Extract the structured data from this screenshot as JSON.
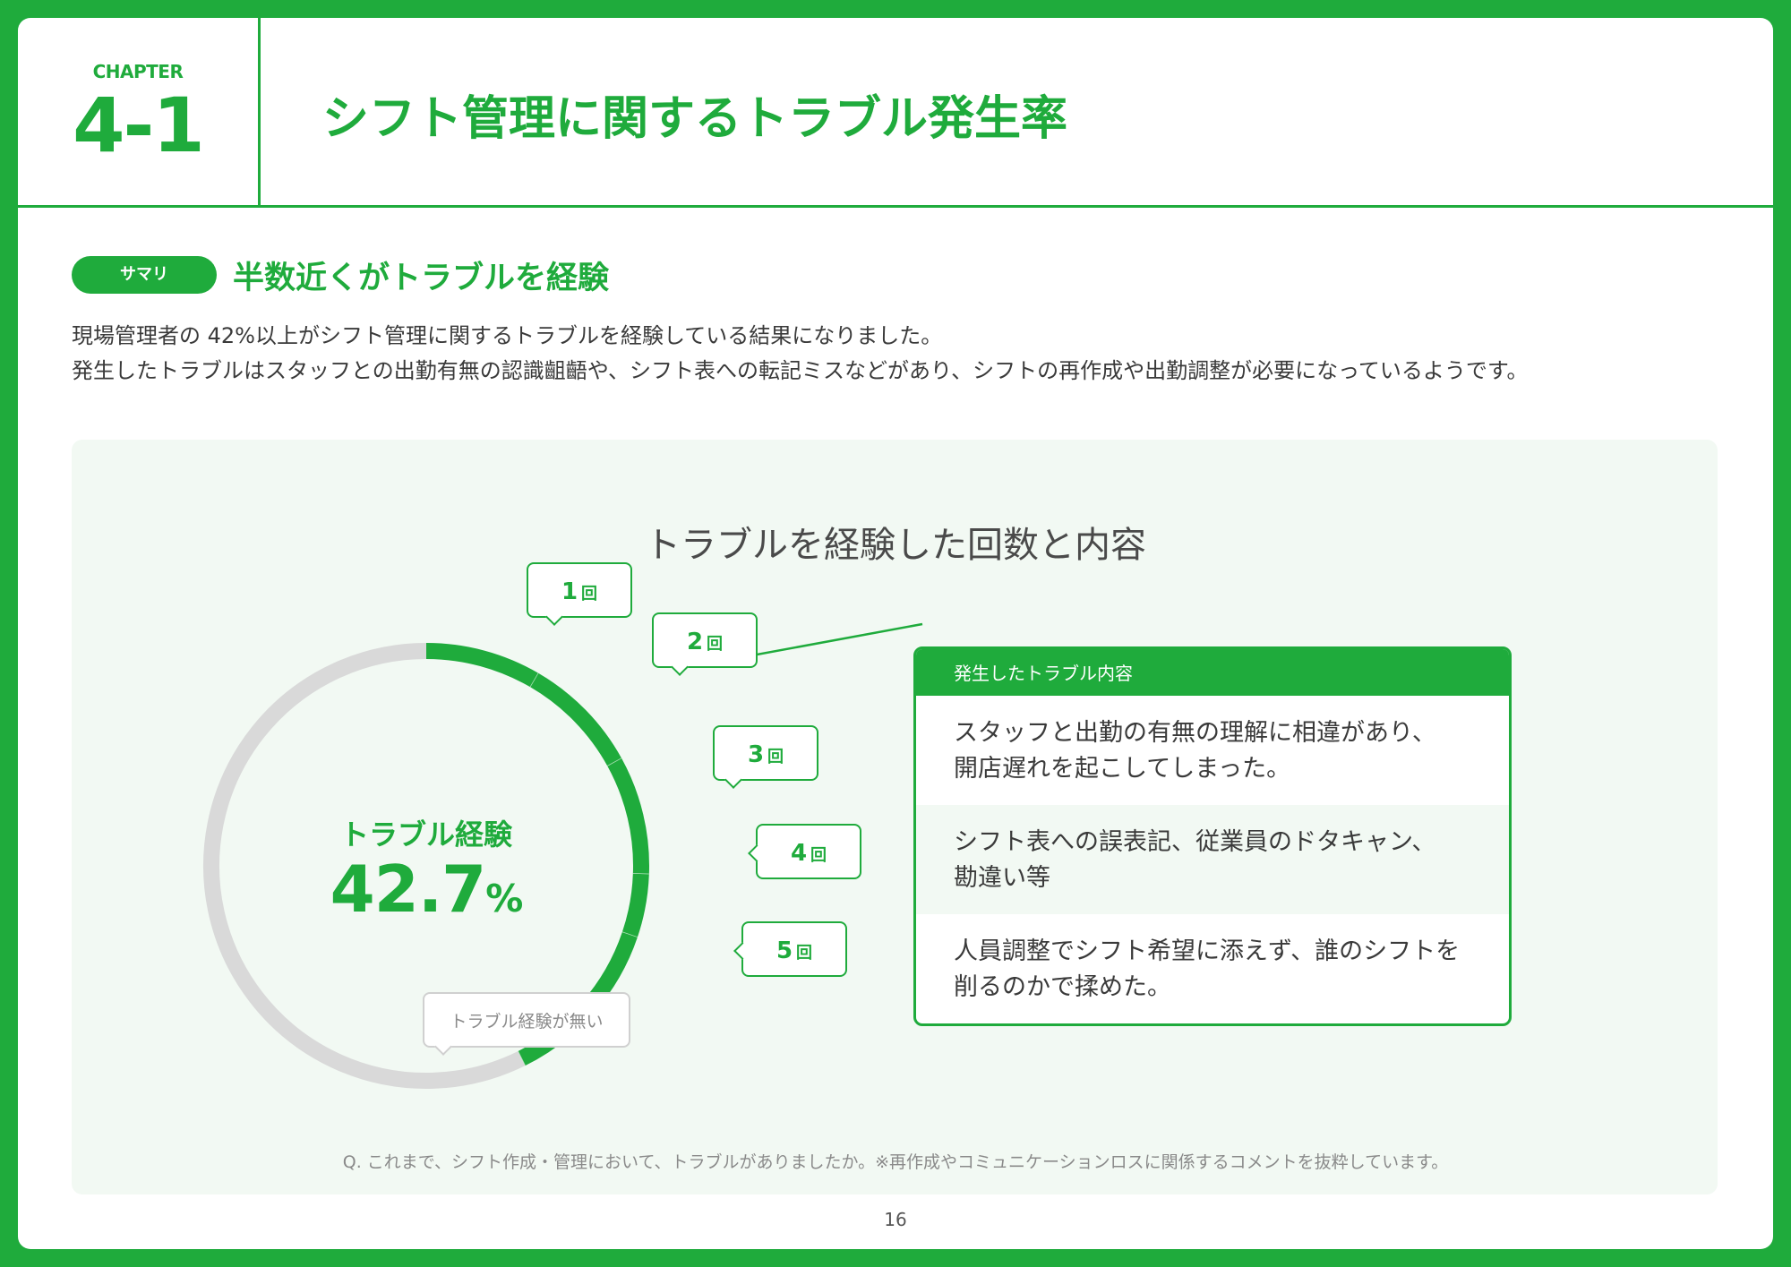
{
  "header": {
    "chapter_label": "CHAPTER",
    "chapter_number": "4-1",
    "title": "シフト管理に関するトラブル発生率"
  },
  "summary": {
    "badge": "サマリ",
    "heading": "半数近くがトラブルを経験",
    "body_line1": "現場管理者の 42%以上がシフト管理に関するトラブルを経験している結果になりました。",
    "body_line2": "発生したトラブルはスタッフとの出勤有無の認識齟齬や、シフト表への転記ミスなどがあり、シフトの再作成や出勤調整が必要になっているようです。"
  },
  "colors": {
    "accent": "#1fab3c",
    "remainder": "#d9d9d9"
  },
  "chart_data": {
    "type": "pie",
    "title": "トラブルを経験した回数と内容",
    "center_label": "トラブル経験",
    "center_value": "42.7",
    "center_unit": "%",
    "slices": [
      {
        "label": "1",
        "value": 8.4
      },
      {
        "label": "2",
        "value": 8.6
      },
      {
        "label": "3",
        "value": 8.6
      },
      {
        "label": "4",
        "value": 4.6
      },
      {
        "label": "5",
        "value": 12.5
      },
      {
        "label": "トラブル経験が無い",
        "value": 57.3
      }
    ],
    "callout_unit": "回"
  },
  "trouble_card": {
    "header": "発生したトラブル内容",
    "items": [
      {
        "line1": "スタッフと出勤の有無の理解に相違があり、",
        "line2": "開店遅れを起こしてしまった。"
      },
      {
        "line1": "シフト表への誤表記、従業員のドタキャン、",
        "line2": "勘違い等"
      },
      {
        "line1": "人員調整でシフト希望に添えず、誰のシフトを",
        "line2": "削るのかで揉めた。"
      }
    ]
  },
  "footnote": "Q. これまで、シフト作成・管理において、トラブルがありましたか。※再作成やコミュニケーションロスに関係するコメントを抜粋しています。",
  "page_number": "16"
}
